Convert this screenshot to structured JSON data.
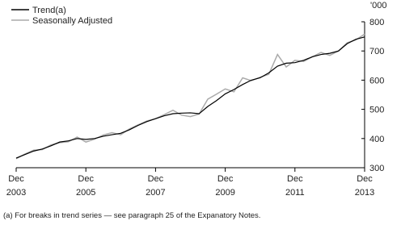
{
  "chart_data": {
    "type": "line",
    "unit_label": "'000",
    "footnote": "(a) For breaks in trend series — see paragraph 25 of the Expanatory Notes.",
    "x": [
      "2003-12",
      "2004-03",
      "2004-06",
      "2004-09",
      "2004-12",
      "2005-03",
      "2005-06",
      "2005-09",
      "2005-12",
      "2006-03",
      "2006-06",
      "2006-09",
      "2006-12",
      "2007-03",
      "2007-06",
      "2007-09",
      "2007-12",
      "2008-03",
      "2008-06",
      "2008-09",
      "2008-12",
      "2009-03",
      "2009-06",
      "2009-09",
      "2009-12",
      "2010-03",
      "2010-06",
      "2010-09",
      "2010-12",
      "2011-03",
      "2011-06",
      "2011-09",
      "2011-12",
      "2012-03",
      "2012-06",
      "2012-09",
      "2012-12",
      "2013-03",
      "2013-06",
      "2013-09",
      "2013-12"
    ],
    "series": [
      {
        "name": "Trend(a)",
        "color": "#000000",
        "values": [
          333,
          345,
          357,
          364,
          375,
          388,
          392,
          400,
          397,
          400,
          408,
          413,
          418,
          430,
          445,
          458,
          468,
          478,
          485,
          487,
          488,
          485,
          510,
          530,
          553,
          568,
          585,
          600,
          608,
          625,
          648,
          658,
          660,
          668,
          680,
          688,
          692,
          700,
          725,
          740,
          748
        ]
      },
      {
        "name": "Seasonally Adjusted",
        "color": "#aaaaaa",
        "values": [
          331,
          347,
          360,
          362,
          378,
          386,
          389,
          405,
          388,
          398,
          412,
          420,
          413,
          433,
          447,
          460,
          468,
          482,
          497,
          480,
          475,
          484,
          535,
          552,
          570,
          560,
          608,
          598,
          610,
          620,
          688,
          645,
          668,
          664,
          680,
          695,
          685,
          700,
          728,
          738,
          758
        ]
      }
    ],
    "xlim": [
      "2003-12",
      "2013-12"
    ],
    "xticks": [
      {
        "value": "2003-12",
        "label": [
          "Dec",
          "2003"
        ]
      },
      {
        "value": "2005-12",
        "label": [
          "Dec",
          "2005"
        ]
      },
      {
        "value": "2007-12",
        "label": [
          "Dec",
          "2007"
        ]
      },
      {
        "value": "2009-12",
        "label": [
          "Dec",
          "2009"
        ]
      },
      {
        "value": "2011-12",
        "label": [
          "Dec",
          "2011"
        ]
      },
      {
        "value": "2013-12",
        "label": [
          "Dec",
          "2013"
        ]
      }
    ],
    "ylim": [
      300,
      800
    ],
    "yticks": [
      300,
      400,
      500,
      600,
      700,
      800
    ],
    "legend": "top-left"
  }
}
